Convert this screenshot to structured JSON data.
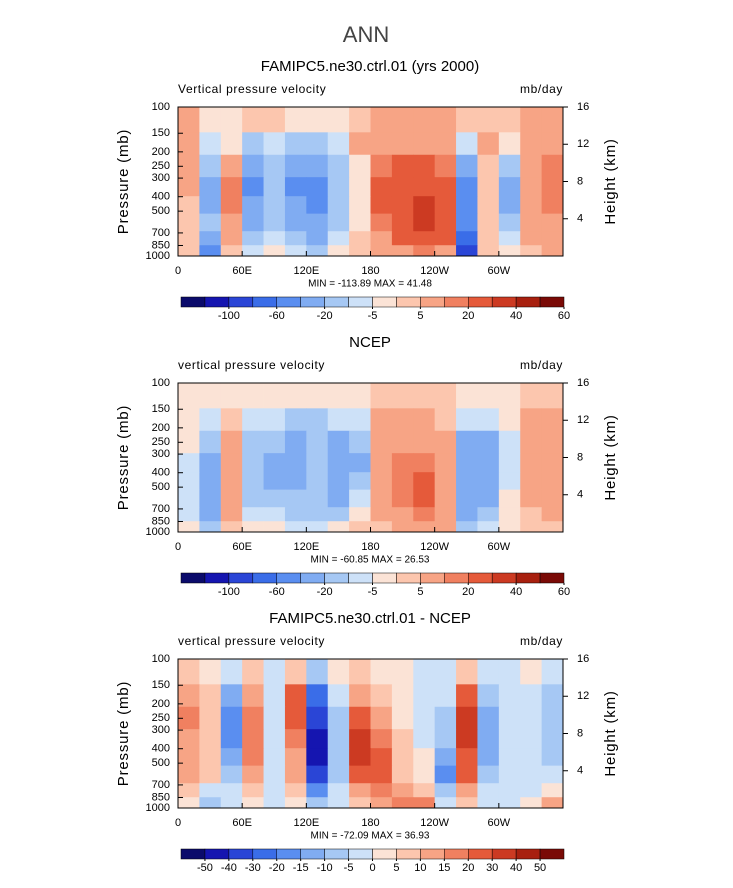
{
  "suptitle": "ANN",
  "chart_data": [
    {
      "type": "contour",
      "title": "FAMIPC5.ne30.ctrl.01 (yrs 2000)",
      "left_label": "Vertical pressure velocity",
      "right_label": "mb/day",
      "ylabel": "Pressure (mb)",
      "y2label": "Height (km)",
      "stats": "MIN = -113.89  MAX =  41.48",
      "x": [
        10,
        30,
        50,
        70,
        90,
        110,
        130,
        150,
        170,
        190,
        210,
        230,
        250,
        270,
        290,
        310,
        330,
        350
      ],
      "y": [
        125,
        175,
        250,
        350,
        450,
        600,
        775,
        925
      ],
      "values": [
        [
          5,
          -3,
          -3,
          3,
          3,
          -3,
          -3,
          -3,
          3,
          5,
          5,
          5,
          5,
          3,
          3,
          3,
          5,
          5
        ],
        [
          10,
          -10,
          -5,
          -20,
          -10,
          -20,
          -20,
          -10,
          5,
          10,
          10,
          10,
          10,
          -10,
          5,
          -5,
          10,
          10
        ],
        [
          10,
          -20,
          10,
          -40,
          -20,
          -40,
          -40,
          -20,
          -3,
          15,
          20,
          20,
          15,
          -40,
          3,
          -20,
          10,
          15
        ],
        [
          5,
          -30,
          15,
          -50,
          -20,
          -50,
          -60,
          -20,
          -5,
          20,
          25,
          25,
          20,
          -50,
          3,
          -30,
          5,
          15
        ],
        [
          3,
          -30,
          15,
          -40,
          -20,
          -40,
          -60,
          -20,
          -5,
          20,
          25,
          30,
          20,
          -50,
          3,
          -30,
          5,
          15
        ],
        [
          3,
          -20,
          10,
          -30,
          -15,
          -30,
          -40,
          -15,
          -3,
          15,
          25,
          30,
          25,
          -60,
          3,
          -20,
          5,
          10
        ],
        [
          3,
          -40,
          5,
          -20,
          -10,
          -20,
          -30,
          -10,
          3,
          10,
          20,
          25,
          20,
          -80,
          3,
          -10,
          5,
          10
        ],
        [
          3,
          -60,
          3,
          -10,
          -5,
          -10,
          -20,
          -5,
          3,
          5,
          10,
          15,
          10,
          -100,
          3,
          -5,
          3,
          5
        ]
      ],
      "xlim": [
        0,
        360
      ],
      "xticks": [
        0,
        {
          "value": 60,
          "label": "60E"
        },
        {
          "value": 120,
          "label": "120E"
        },
        180,
        {
          "value": 240,
          "label": "120W"
        },
        {
          "value": 300,
          "label": "60W"
        }
      ],
      "ylim": [
        1000,
        100
      ],
      "log_y": true,
      "yticks": [
        100,
        150,
        200,
        250,
        300,
        400,
        500,
        700,
        850,
        1000
      ],
      "y2lim": [
        0,
        16
      ],
      "y2ticks": [
        4,
        8,
        12,
        16
      ],
      "colorbar": {
        "levels": [
          -100,
          -60,
          -20,
          -5,
          5,
          20,
          40,
          60
        ],
        "colors": [
          "#0b0b6b",
          "#1515b0",
          "#2a45d6",
          "#3a6de8",
          "#5a8ef0",
          "#80acf2",
          "#a6c8f4",
          "#cde1f8",
          "#fbe3d6",
          "#fcc6ae",
          "#f7a485",
          "#f08060",
          "#e55a3a",
          "#cc3a22",
          "#a8200f",
          "#7a0a06"
        ]
      }
    },
    {
      "type": "contour",
      "title": "NCEP",
      "left_label": "vertical pressure velocity",
      "right_label": "mb/day",
      "ylabel": "Pressure (mb)",
      "y2label": "Height (km)",
      "stats": "MIN = -60.85  MAX =  26.53",
      "x": [
        10,
        30,
        50,
        70,
        90,
        110,
        130,
        150,
        170,
        190,
        210,
        230,
        250,
        270,
        290,
        310,
        330,
        350
      ],
      "y": [
        125,
        175,
        250,
        350,
        450,
        600,
        775,
        925
      ],
      "values": [
        [
          -3,
          -3,
          -3,
          -3,
          -3,
          -3,
          -5,
          -3,
          -3,
          3,
          3,
          3,
          3,
          -3,
          -3,
          -3,
          3,
          3
        ],
        [
          -5,
          -10,
          3,
          -10,
          -10,
          -20,
          -20,
          -10,
          -10,
          5,
          5,
          5,
          3,
          -10,
          -10,
          -5,
          5,
          5
        ],
        [
          -5,
          -20,
          5,
          -20,
          -20,
          -30,
          -20,
          -30,
          -20,
          5,
          10,
          10,
          5,
          -30,
          -30,
          -10,
          5,
          10
        ],
        [
          -10,
          -30,
          5,
          -20,
          -30,
          -30,
          -20,
          -40,
          -30,
          5,
          15,
          15,
          10,
          -40,
          -30,
          -10,
          5,
          10
        ],
        [
          -10,
          -30,
          5,
          -20,
          -30,
          -30,
          -20,
          -40,
          -20,
          10,
          15,
          20,
          10,
          -40,
          -30,
          -10,
          5,
          10
        ],
        [
          -10,
          -30,
          5,
          -20,
          -20,
          -20,
          -20,
          -30,
          -10,
          10,
          15,
          20,
          10,
          -40,
          -30,
          -5,
          5,
          10
        ],
        [
          -10,
          -30,
          5,
          -10,
          -10,
          -20,
          -20,
          -20,
          -5,
          5,
          10,
          15,
          10,
          -30,
          -20,
          -5,
          3,
          5
        ],
        [
          -5,
          -20,
          3,
          -5,
          -5,
          -10,
          -10,
          -5,
          3,
          3,
          5,
          5,
          5,
          -20,
          -10,
          -3,
          3,
          3
        ]
      ],
      "xlim": [
        0,
        360
      ],
      "xticks": [
        0,
        {
          "value": 60,
          "label": "60E"
        },
        {
          "value": 120,
          "label": "120E"
        },
        180,
        {
          "value": 240,
          "label": "120W"
        },
        {
          "value": 300,
          "label": "60W"
        }
      ],
      "ylim": [
        1000,
        100
      ],
      "log_y": true,
      "yticks": [
        100,
        150,
        200,
        250,
        300,
        400,
        500,
        700,
        850,
        1000
      ],
      "y2lim": [
        0,
        16
      ],
      "y2ticks": [
        4,
        8,
        12,
        16
      ],
      "colorbar": {
        "levels": [
          -100,
          -60,
          -20,
          -5,
          5,
          20,
          40,
          60
        ],
        "colors": [
          "#0b0b6b",
          "#1515b0",
          "#2a45d6",
          "#3a6de8",
          "#5a8ef0",
          "#80acf2",
          "#a6c8f4",
          "#cde1f8",
          "#fbe3d6",
          "#fcc6ae",
          "#f7a485",
          "#f08060",
          "#e55a3a",
          "#cc3a22",
          "#a8200f",
          "#7a0a06"
        ]
      }
    },
    {
      "type": "contour",
      "title": "FAMIPC5.ne30.ctrl.01 - NCEP",
      "left_label": "vertical pressure velocity",
      "right_label": "mb/day",
      "ylabel": "Pressure (mb)",
      "y2label": "Height (km)",
      "stats": "MIN = -72.09  MAX =  36.93",
      "x": [
        10,
        30,
        50,
        70,
        90,
        110,
        130,
        150,
        170,
        190,
        210,
        230,
        250,
        270,
        290,
        310,
        330,
        350
      ],
      "y": [
        125,
        175,
        250,
        350,
        450,
        600,
        775,
        925
      ],
      "values": [
        [
          5,
          3,
          -5,
          5,
          -3,
          5,
          -10,
          3,
          5,
          3,
          3,
          -3,
          -3,
          5,
          -3,
          -3,
          3,
          -3
        ],
        [
          10,
          5,
          -15,
          10,
          -5,
          20,
          -30,
          -5,
          10,
          5,
          3,
          -3,
          -5,
          20,
          -10,
          -5,
          -5,
          -10
        ],
        [
          15,
          5,
          -20,
          15,
          -5,
          20,
          -40,
          -10,
          20,
          10,
          3,
          -3,
          -10,
          30,
          -15,
          -5,
          -5,
          -10
        ],
        [
          10,
          5,
          -20,
          15,
          -5,
          15,
          -50,
          -10,
          30,
          15,
          5,
          -3,
          -10,
          30,
          -15,
          -5,
          -5,
          -10
        ],
        [
          10,
          5,
          -15,
          15,
          -5,
          10,
          -50,
          -10,
          30,
          20,
          5,
          3,
          -15,
          25,
          -15,
          -5,
          -5,
          -10
        ],
        [
          10,
          5,
          -10,
          10,
          -5,
          10,
          -40,
          -10,
          20,
          20,
          5,
          3,
          -20,
          20,
          -10,
          -5,
          -5,
          -5
        ],
        [
          5,
          -5,
          -5,
          5,
          -3,
          5,
          -20,
          -5,
          10,
          15,
          10,
          5,
          -10,
          10,
          -5,
          -3,
          -3,
          3
        ],
        [
          3,
          -10,
          -3,
          3,
          -3,
          3,
          -10,
          -3,
          5,
          10,
          15,
          15,
          -5,
          5,
          -3,
          -3,
          3,
          10
        ]
      ],
      "xlim": [
        0,
        360
      ],
      "xticks": [
        0,
        {
          "value": 60,
          "label": "60E"
        },
        {
          "value": 120,
          "label": "120E"
        },
        180,
        {
          "value": 240,
          "label": "120W"
        },
        {
          "value": 300,
          "label": "60W"
        }
      ],
      "ylim": [
        1000,
        100
      ],
      "log_y": true,
      "yticks": [
        100,
        150,
        200,
        250,
        300,
        400,
        500,
        700,
        850,
        1000
      ],
      "y2lim": [
        0,
        16
      ],
      "y2ticks": [
        4,
        8,
        12,
        16
      ],
      "colorbar": {
        "levels": [
          -50,
          -40,
          -30,
          -20,
          -15,
          -10,
          -5,
          0,
          5,
          10,
          15,
          20,
          30,
          40,
          50
        ],
        "colors": [
          "#0b0b6b",
          "#1515b0",
          "#2a45d6",
          "#3a6de8",
          "#5a8ef0",
          "#80acf2",
          "#a6c8f4",
          "#cde1f8",
          "#fbe3d6",
          "#fcc6ae",
          "#f7a485",
          "#f08060",
          "#e55a3a",
          "#cc3a22",
          "#a8200f",
          "#7a0a06"
        ]
      }
    }
  ]
}
